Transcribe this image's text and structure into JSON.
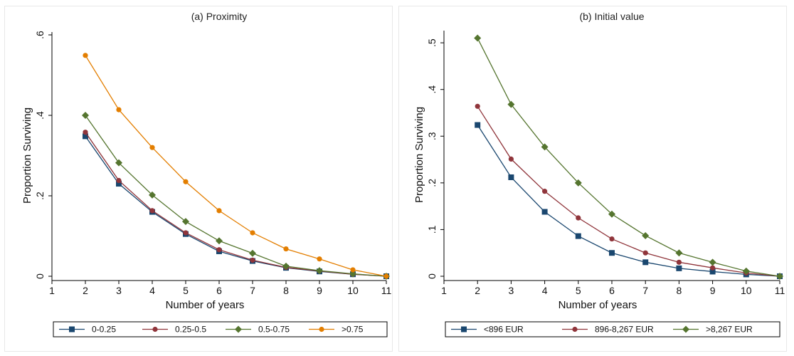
{
  "chart_data": [
    {
      "type": "line",
      "title": "(a) Proximity",
      "xlabel": "Number of years",
      "ylabel": "Proportion Surviving",
      "x": [
        2,
        3,
        4,
        5,
        6,
        7,
        8,
        9,
        10,
        11
      ],
      "xticks": [
        "1",
        "2",
        "3",
        "4",
        "5",
        "6",
        "7",
        "8",
        "9",
        "10",
        "11"
      ],
      "yticks": [
        {
          "value": 0,
          "label": "0"
        },
        {
          "value": 0.2,
          "label": ".2"
        },
        {
          "value": 0.4,
          "label": ".4"
        },
        {
          "value": 0.6,
          "label": ".6"
        }
      ],
      "xlim": [
        1,
        11
      ],
      "ylim": [
        0,
        0.6
      ],
      "legend_position": "bottom",
      "series": [
        {
          "name": "0-0.25",
          "color": "#1a476f",
          "marker": "square",
          "values": [
            0.348,
            0.23,
            0.16,
            0.105,
            0.062,
            0.038,
            0.021,
            0.012,
            0.005,
            0.0
          ]
        },
        {
          "name": "0.25-0.5",
          "color": "#90353b",
          "marker": "circle",
          "values": [
            0.358,
            0.238,
            0.163,
            0.108,
            0.066,
            0.04,
            0.022,
            0.013,
            0.005,
            0.0
          ]
        },
        {
          "name": "0.5-0.75",
          "color": "#55752f",
          "marker": "diamond",
          "values": [
            0.4,
            0.282,
            0.202,
            0.136,
            0.088,
            0.057,
            0.025,
            0.014,
            0.006,
            0.0
          ]
        },
        {
          "name": ">0.75",
          "color": "#e37e00",
          "marker": "circle",
          "values": [
            0.549,
            0.414,
            0.32,
            0.235,
            0.163,
            0.108,
            0.068,
            0.043,
            0.016,
            0.0
          ]
        }
      ]
    },
    {
      "type": "line",
      "title": "(b) Initial value",
      "xlabel": "Number of years",
      "ylabel": "Proportion Surviving",
      "x": [
        2,
        3,
        4,
        5,
        6,
        7,
        8,
        9,
        10,
        11
      ],
      "xticks": [
        "1",
        "2",
        "3",
        "4",
        "5",
        "6",
        "7",
        "8",
        "9",
        "10",
        "11"
      ],
      "yticks": [
        {
          "value": 0,
          "label": "0"
        },
        {
          "value": 0.1,
          "label": ".1"
        },
        {
          "value": 0.2,
          "label": ".2"
        },
        {
          "value": 0.3,
          "label": ".3"
        },
        {
          "value": 0.4,
          "label": ".4"
        },
        {
          "value": 0.5,
          "label": ".5"
        }
      ],
      "xlim": [
        1,
        11
      ],
      "ylim": [
        0,
        0.52
      ],
      "legend_position": "bottom",
      "series": [
        {
          "name": "<896 EUR",
          "color": "#1a476f",
          "marker": "square",
          "values": [
            0.324,
            0.212,
            0.138,
            0.086,
            0.05,
            0.03,
            0.017,
            0.01,
            0.004,
            0.0
          ]
        },
        {
          "name": "896-8,267 EUR",
          "color": "#90353b",
          "marker": "circle",
          "values": [
            0.364,
            0.251,
            0.182,
            0.125,
            0.08,
            0.05,
            0.03,
            0.018,
            0.007,
            0.0
          ]
        },
        {
          "name": ">8,267 EUR",
          "color": "#55752f",
          "marker": "diamond",
          "values": [
            0.51,
            0.368,
            0.277,
            0.2,
            0.133,
            0.087,
            0.05,
            0.03,
            0.011,
            0.0
          ]
        }
      ]
    }
  ]
}
